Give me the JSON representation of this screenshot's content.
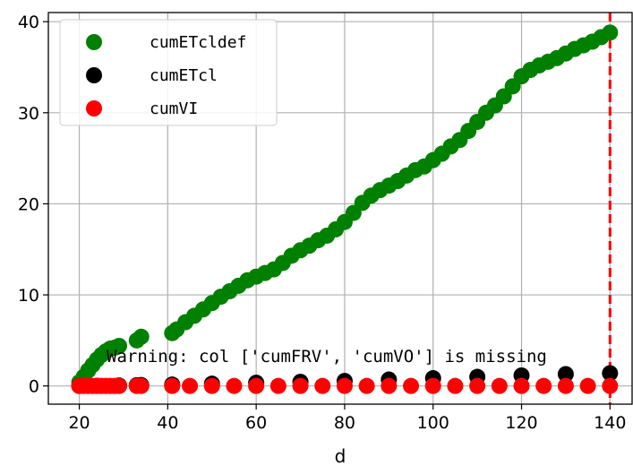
{
  "chart_data": {
    "type": "scatter",
    "xlabel": "d",
    "ylabel": "",
    "xlim": [
      13,
      145
    ],
    "ylim": [
      -2,
      41
    ],
    "xticks": [
      20,
      40,
      60,
      80,
      100,
      120,
      140
    ],
    "yticks": [
      0,
      10,
      20,
      30,
      40
    ],
    "grid": true,
    "legend_position": "top-left",
    "vline": {
      "x": 140,
      "color": "#ff0000",
      "style": "dashed"
    },
    "annotation": "Warning: col ['cumFRV', 'cumVO'] is missing",
    "series": [
      {
        "name": "cumETcldef",
        "color": "#008000",
        "x": [
          20,
          21,
          22,
          23,
          24,
          25,
          26,
          27,
          28,
          29,
          33,
          34,
          41,
          42,
          44,
          46,
          48,
          50,
          52,
          54,
          56,
          58,
          60,
          62,
          64,
          66,
          68,
          70,
          72,
          74,
          76,
          78,
          80,
          82,
          84,
          86,
          88,
          90,
          92,
          94,
          96,
          98,
          100,
          102,
          104,
          106,
          108,
          110,
          112,
          114,
          116,
          118,
          120,
          122,
          124,
          126,
          128,
          130,
          132,
          134,
          136,
          138,
          140
        ],
        "y": [
          0.4,
          1.0,
          1.7,
          2.3,
          2.9,
          3.4,
          3.8,
          4.1,
          4.2,
          4.4,
          5.0,
          5.4,
          5.8,
          6.2,
          7.0,
          7.7,
          8.4,
          9.1,
          9.8,
          10.4,
          11.0,
          11.6,
          12.0,
          12.4,
          12.8,
          13.5,
          14.3,
          14.9,
          15.4,
          16.0,
          16.5,
          17.2,
          18.0,
          19.0,
          20.1,
          20.9,
          21.5,
          22.0,
          22.5,
          23.1,
          23.7,
          24.1,
          24.8,
          25.5,
          26.3,
          27.0,
          28.0,
          29.0,
          30.0,
          30.8,
          31.8,
          32.9,
          34.0,
          34.7,
          35.2,
          35.6,
          36.0,
          36.5,
          37.0,
          37.4,
          37.8,
          38.3,
          38.8
        ]
      },
      {
        "name": "cumETcl",
        "color": "#000000",
        "x": [
          20,
          24,
          29,
          33,
          34,
          41,
          50,
          60,
          70,
          80,
          90,
          100,
          110,
          120,
          130,
          140
        ],
        "y": [
          0.0,
          0.02,
          0.05,
          0.08,
          0.1,
          0.15,
          0.25,
          0.35,
          0.45,
          0.55,
          0.7,
          0.85,
          1.0,
          1.15,
          1.3,
          1.4
        ]
      },
      {
        "name": "cumVI",
        "color": "#ff0000",
        "x": [
          20,
          21,
          22,
          23,
          24,
          25,
          26,
          27,
          28,
          29,
          33,
          34,
          41,
          45,
          50,
          55,
          60,
          65,
          70,
          75,
          80,
          85,
          90,
          95,
          100,
          105,
          110,
          115,
          120,
          125,
          130,
          135,
          140
        ],
        "y": [
          0,
          0,
          0,
          0,
          0,
          0,
          0,
          0,
          0,
          0,
          0,
          0,
          0,
          0,
          0,
          0,
          0,
          0,
          0,
          0,
          0,
          0,
          0,
          0,
          0,
          0,
          0,
          0,
          0,
          0,
          0,
          0,
          0
        ]
      }
    ]
  }
}
